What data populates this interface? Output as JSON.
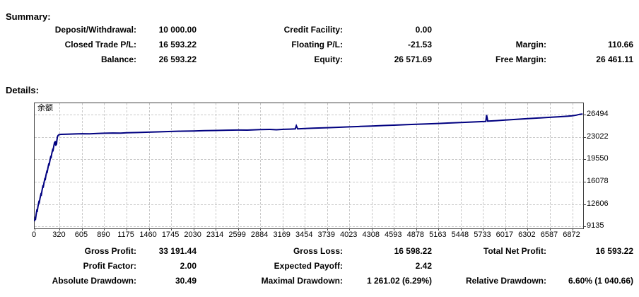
{
  "summary": {
    "heading": "Summary:",
    "rows": [
      {
        "c1l": "Deposit/Withdrawal:",
        "c1v": "10 000.00",
        "c2l": "Credit Facility:",
        "c2v": "0.00",
        "c3l": "",
        "c3v": ""
      },
      {
        "c1l": "Closed Trade P/L:",
        "c1v": "16 593.22",
        "c2l": "Floating P/L:",
        "c2v": "-21.53",
        "c3l": "Margin:",
        "c3v": "110.66"
      },
      {
        "c1l": "Balance:",
        "c1v": "26 593.22",
        "c2l": "Equity:",
        "c2v": "26 571.69",
        "c3l": "Free Margin:",
        "c3v": "26 461.11"
      }
    ]
  },
  "details": {
    "heading": "Details:",
    "rows": [
      {
        "c1l": "Gross Profit:",
        "c1v": "33 191.44",
        "c2l": "Gross Loss:",
        "c2v": "16 598.22",
        "c3l": "Total Net Profit:",
        "c3v": "16 593.22"
      },
      {
        "c1l": "Profit Factor:",
        "c1v": "2.00",
        "c2l": "Expected Payoff:",
        "c2v": "2.42",
        "c3l": "",
        "c3v": ""
      },
      {
        "c1l": "Absolute Drawdown:",
        "c1v": "30.49",
        "c2l": "Maximal Drawdown:",
        "c2v": "1 261.02 (6.29%)",
        "c3l": "Relative Drawdown:",
        "c3v": "6.60% (1 040.66)"
      }
    ]
  },
  "chart_data": {
    "type": "line",
    "legend": "余额",
    "xlabel": "",
    "ylabel": "",
    "xlim": [
      0,
      7012
    ],
    "ylim": [
      8838,
      28252
    ],
    "x_ticks": [
      0,
      320,
      605,
      890,
      1175,
      1460,
      1745,
      2030,
      2314,
      2599,
      2884,
      3169,
      3454,
      3739,
      4023,
      4308,
      4593,
      4878,
      5163,
      5448,
      5733,
      6017,
      6302,
      6587,
      6872
    ],
    "y_ticks": [
      26494,
      23022,
      19550,
      16078,
      12606,
      9135
    ],
    "grid": "dashed",
    "line_color": "#000080",
    "grid_color": "#c8c8c8",
    "axis_color": "#404040",
    "series": [
      {
        "name": "余额",
        "points": [
          [
            0,
            9970
          ],
          [
            8,
            10450
          ],
          [
            13,
            10380
          ],
          [
            20,
            11050
          ],
          [
            28,
            11650
          ],
          [
            34,
            11570
          ],
          [
            43,
            12300
          ],
          [
            54,
            12950
          ],
          [
            60,
            12870
          ],
          [
            70,
            13550
          ],
          [
            80,
            14150
          ],
          [
            86,
            14070
          ],
          [
            95,
            14750
          ],
          [
            105,
            15380
          ],
          [
            111,
            15300
          ],
          [
            120,
            15930
          ],
          [
            130,
            16520
          ],
          [
            136,
            16450
          ],
          [
            145,
            17060
          ],
          [
            155,
            17660
          ],
          [
            161,
            17590
          ],
          [
            170,
            18210
          ],
          [
            180,
            18800
          ],
          [
            186,
            18730
          ],
          [
            195,
            19350
          ],
          [
            205,
            19940
          ],
          [
            211,
            19870
          ],
          [
            220,
            20480
          ],
          [
            230,
            21030
          ],
          [
            236,
            20960
          ],
          [
            244,
            21540
          ],
          [
            252,
            22040
          ],
          [
            258,
            21970
          ],
          [
            264,
            22390
          ],
          [
            270,
            21660
          ],
          [
            275,
            22120
          ],
          [
            279,
            21830
          ],
          [
            285,
            22520
          ],
          [
            291,
            23010
          ],
          [
            299,
            23250
          ],
          [
            312,
            23380
          ],
          [
            335,
            23430
          ],
          [
            420,
            23450
          ],
          [
            520,
            23490
          ],
          [
            605,
            23520
          ],
          [
            700,
            23500
          ],
          [
            800,
            23560
          ],
          [
            890,
            23600
          ],
          [
            1000,
            23630
          ],
          [
            1100,
            23615
          ],
          [
            1175,
            23670
          ],
          [
            1320,
            23715
          ],
          [
            1460,
            23770
          ],
          [
            1610,
            23825
          ],
          [
            1745,
            23875
          ],
          [
            1880,
            23915
          ],
          [
            2030,
            23950
          ],
          [
            2170,
            23995
          ],
          [
            2314,
            24030
          ],
          [
            2460,
            24070
          ],
          [
            2599,
            24100
          ],
          [
            2720,
            24085
          ],
          [
            2884,
            24160
          ],
          [
            3005,
            24190
          ],
          [
            3090,
            24140
          ],
          [
            3180,
            24205
          ],
          [
            3265,
            24235
          ],
          [
            3332,
            24270
          ],
          [
            3345,
            24760
          ],
          [
            3362,
            24280
          ],
          [
            3454,
            24330
          ],
          [
            3560,
            24385
          ],
          [
            3739,
            24460
          ],
          [
            3860,
            24515
          ],
          [
            4023,
            24590
          ],
          [
            4160,
            24655
          ],
          [
            4308,
            24720
          ],
          [
            4460,
            24795
          ],
          [
            4593,
            24855
          ],
          [
            4730,
            24915
          ],
          [
            4878,
            24985
          ],
          [
            5010,
            25045
          ],
          [
            5163,
            25120
          ],
          [
            5310,
            25195
          ],
          [
            5448,
            25265
          ],
          [
            5580,
            25330
          ],
          [
            5733,
            25415
          ],
          [
            5768,
            25435
          ],
          [
            5778,
            26430
          ],
          [
            5792,
            25475
          ],
          [
            5905,
            25555
          ],
          [
            6017,
            25645
          ],
          [
            6160,
            25755
          ],
          [
            6302,
            25865
          ],
          [
            6420,
            25945
          ],
          [
            6587,
            26065
          ],
          [
            6705,
            26155
          ],
          [
            6805,
            26235
          ],
          [
            6872,
            26295
          ],
          [
            6925,
            26410
          ],
          [
            6965,
            26530
          ],
          [
            7005,
            26575
          ]
        ]
      }
    ]
  }
}
